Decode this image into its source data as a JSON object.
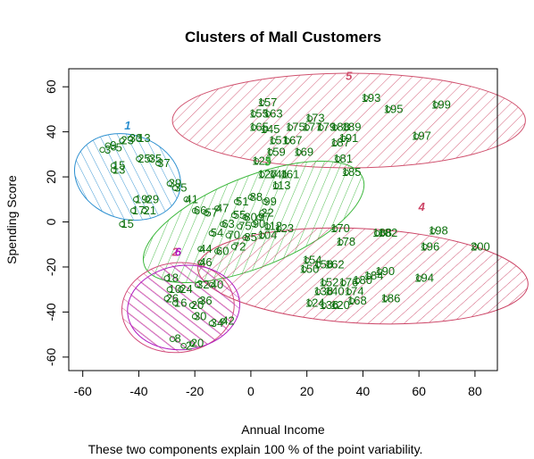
{
  "chart_data": {
    "type": "scatter",
    "title": "Clusters of Mall Customers",
    "xlabel": "Annual Income",
    "ylabel": "Spending Score",
    "sub": "These two components explain 100 % of the point variability.",
    "xlim": [
      -65,
      88
    ],
    "ylim": [
      -66,
      68
    ],
    "xticks": [
      "-60",
      "-40",
      "-20",
      "0",
      "20",
      "40",
      "60",
      "80"
    ],
    "yticks": [
      "-60",
      "-40",
      "-20",
      "0",
      "20",
      "40",
      "60"
    ],
    "grid": false,
    "legend": "none",
    "colors": {
      "points": "#1a7a1a",
      "labels": "#0a6e0a",
      "cluster_1": "#2b8fd0",
      "cluster_2": "#d24b7a",
      "cluster_3": "#3db83d",
      "cluster_4": "#cc4466",
      "cluster_5": "#d0516e",
      "cluster_6": "#b01cc0"
    },
    "clusters": [
      {
        "label": "1",
        "cx": -44,
        "cy": 20,
        "rx": 15,
        "ry": 24,
        "angle": -72,
        "color": "#2b8fd0",
        "label_x": -44,
        "label_y": 41
      },
      {
        "label": "5",
        "cx": 35,
        "cy": 45,
        "rx": 63,
        "ry": 21,
        "angle": 0,
        "color": "#d0516e",
        "label_x": 35,
        "label_y": 63
      },
      {
        "label": "3",
        "cx": 1,
        "cy": 0,
        "rx": 42,
        "ry": 20,
        "angle": -22,
        "color": "#3db83d",
        "label_x": 6,
        "label_y": 25
      },
      {
        "label": "4",
        "cx": 40,
        "cy": -24,
        "rx": 59,
        "ry": 21,
        "angle": 3,
        "color": "#cc4466",
        "label_x": 61,
        "label_y": 5
      },
      {
        "label": "2",
        "cx": -26,
        "cy": -38,
        "rx": 16,
        "ry": 25,
        "angle": 83,
        "color": "#d24b7a",
        "label_x": -27,
        "label_y": -15
      },
      {
        "label": "6",
        "cx": -24,
        "cy": -38,
        "rx": 15,
        "ry": 25,
        "angle": 83,
        "color": "#b01cc0",
        "label_x": -26,
        "label_y": -15
      }
    ],
    "points": [
      {
        "x": -53,
        "y": 32,
        "label": "3"
      },
      {
        "x": -51,
        "y": 34,
        "label": "9"
      },
      {
        "x": -49,
        "y": 33,
        "label": "5"
      },
      {
        "x": -46,
        "y": 36,
        "label": "23"
      },
      {
        "x": -43,
        "y": 37,
        "label": "33"
      },
      {
        "x": -40,
        "y": 37,
        "label": "13"
      },
      {
        "x": -49,
        "y": 25,
        "label": "15"
      },
      {
        "x": -49,
        "y": 23,
        "label": "13"
      },
      {
        "x": -40,
        "y": 28,
        "label": "25"
      },
      {
        "x": -36,
        "y": 28,
        "label": "35"
      },
      {
        "x": -33,
        "y": 26,
        "label": "37"
      },
      {
        "x": -29,
        "y": 17,
        "label": "39"
      },
      {
        "x": -27,
        "y": 15,
        "label": "35"
      },
      {
        "x": -41,
        "y": 10,
        "label": "19"
      },
      {
        "x": -37,
        "y": 10,
        "label": "29"
      },
      {
        "x": -42,
        "y": 5,
        "label": "17"
      },
      {
        "x": -38,
        "y": 5,
        "label": "21"
      },
      {
        "x": -46,
        "y": -1,
        "label": "15"
      },
      {
        "x": -23,
        "y": 10,
        "label": "41"
      },
      {
        "x": -20,
        "y": 5,
        "label": "66"
      },
      {
        "x": -16,
        "y": 4,
        "label": "57"
      },
      {
        "x": -12,
        "y": 6,
        "label": "47"
      },
      {
        "x": -5,
        "y": 9,
        "label": "51"
      },
      {
        "x": 0,
        "y": 11,
        "label": "88"
      },
      {
        "x": 5,
        "y": 9,
        "label": "99"
      },
      {
        "x": 4,
        "y": 4,
        "label": "22"
      },
      {
        "x": -6,
        "y": 3,
        "label": "55"
      },
      {
        "x": -2,
        "y": 2,
        "label": "80"
      },
      {
        "x": 3,
        "y": 2,
        "label": "97"
      },
      {
        "x": -10,
        "y": -1,
        "label": "63"
      },
      {
        "x": -4,
        "y": -2,
        "label": "75"
      },
      {
        "x": 1,
        "y": -1,
        "label": "90"
      },
      {
        "x": 6,
        "y": -2,
        "label": "112"
      },
      {
        "x": 10,
        "y": -3,
        "label": "123"
      },
      {
        "x": -14,
        "y": -5,
        "label": "54"
      },
      {
        "x": -8,
        "y": -6,
        "label": "70"
      },
      {
        "x": -2,
        "y": -7,
        "label": "85"
      },
      {
        "x": 4,
        "y": -6,
        "label": "104"
      },
      {
        "x": -18,
        "y": -12,
        "label": "44"
      },
      {
        "x": -12,
        "y": -13,
        "label": "60"
      },
      {
        "x": -6,
        "y": -11,
        "label": "72"
      },
      {
        "x": -18,
        "y": -18,
        "label": "46"
      },
      {
        "x": 2,
        "y": 27,
        "label": "125"
      },
      {
        "x": 4,
        "y": 21,
        "label": "127"
      },
      {
        "x": 8,
        "y": 21,
        "label": "141"
      },
      {
        "x": 12,
        "y": 21,
        "label": "161"
      },
      {
        "x": 9,
        "y": 16,
        "label": "113"
      },
      {
        "x": 4,
        "y": 53,
        "label": "157"
      },
      {
        "x": 6,
        "y": 48,
        "label": "163"
      },
      {
        "x": 1,
        "y": 48,
        "label": "155"
      },
      {
        "x": 1,
        "y": 42,
        "label": "165"
      },
      {
        "x": 5,
        "y": 41,
        "label": "145"
      },
      {
        "x": 8,
        "y": 36,
        "label": "151"
      },
      {
        "x": 13,
        "y": 36,
        "label": "167"
      },
      {
        "x": 7,
        "y": 31,
        "label": "159"
      },
      {
        "x": 17,
        "y": 31,
        "label": "169"
      },
      {
        "x": 14,
        "y": 42,
        "label": "175"
      },
      {
        "x": 20,
        "y": 42,
        "label": "177"
      },
      {
        "x": 25,
        "y": 42,
        "label": "179"
      },
      {
        "x": 30,
        "y": 42,
        "label": "183"
      },
      {
        "x": 21,
        "y": 46,
        "label": "173"
      },
      {
        "x": 34,
        "y": 42,
        "label": "189"
      },
      {
        "x": 33,
        "y": 37,
        "label": "191"
      },
      {
        "x": 30,
        "y": 35,
        "label": "187"
      },
      {
        "x": 31,
        "y": 28,
        "label": "181"
      },
      {
        "x": 34,
        "y": 22,
        "label": "185"
      },
      {
        "x": 41,
        "y": 55,
        "label": "193"
      },
      {
        "x": 49,
        "y": 50,
        "label": "195"
      },
      {
        "x": 59,
        "y": 38,
        "label": "197"
      },
      {
        "x": 66,
        "y": 52,
        "label": "199"
      },
      {
        "x": 30,
        "y": -3,
        "label": "170"
      },
      {
        "x": 32,
        "y": -9,
        "label": "178"
      },
      {
        "x": 47,
        "y": -5,
        "label": "182"
      },
      {
        "x": 45,
        "y": -5,
        "label": "188"
      },
      {
        "x": 65,
        "y": -4,
        "label": "198"
      },
      {
        "x": 62,
        "y": -11,
        "label": "196"
      },
      {
        "x": 80,
        "y": -11,
        "label": "200"
      },
      {
        "x": 20,
        "y": -17,
        "label": "154"
      },
      {
        "x": 24,
        "y": -19,
        "label": "158"
      },
      {
        "x": 28,
        "y": -19,
        "label": "162"
      },
      {
        "x": 19,
        "y": -21,
        "label": "150"
      },
      {
        "x": 26,
        "y": -27,
        "label": "152"
      },
      {
        "x": 33,
        "y": -27,
        "label": "176"
      },
      {
        "x": 38,
        "y": -26,
        "label": "180"
      },
      {
        "x": 42,
        "y": -24,
        "label": "184"
      },
      {
        "x": 46,
        "y": -22,
        "label": "190"
      },
      {
        "x": 60,
        "y": -25,
        "label": "194"
      },
      {
        "x": 24,
        "y": -31,
        "label": "138"
      },
      {
        "x": 28,
        "y": -31,
        "label": "140"
      },
      {
        "x": 35,
        "y": -31,
        "label": "174"
      },
      {
        "x": 48,
        "y": -34,
        "label": "186"
      },
      {
        "x": 36,
        "y": -35,
        "label": "168"
      },
      {
        "x": 21,
        "y": -36,
        "label": "124"
      },
      {
        "x": 26,
        "y": -37,
        "label": "136"
      },
      {
        "x": 30,
        "y": -37,
        "label": "120"
      },
      {
        "x": -30,
        "y": -25,
        "label": "18"
      },
      {
        "x": -29,
        "y": -30,
        "label": "10"
      },
      {
        "x": -25,
        "y": -30,
        "label": "24"
      },
      {
        "x": -19,
        "y": -28,
        "label": "32"
      },
      {
        "x": -14,
        "y": -28,
        "label": "40"
      },
      {
        "x": -30,
        "y": -34,
        "label": "26"
      },
      {
        "x": -27,
        "y": -36,
        "label": "16"
      },
      {
        "x": -21,
        "y": -37,
        "label": "20"
      },
      {
        "x": -18,
        "y": -35,
        "label": "36"
      },
      {
        "x": -20,
        "y": -42,
        "label": "30"
      },
      {
        "x": -14,
        "y": -45,
        "label": "34"
      },
      {
        "x": -10,
        "y": -44,
        "label": "42"
      },
      {
        "x": -28,
        "y": -52,
        "label": "8"
      },
      {
        "x": -24,
        "y": -55,
        "label": "2"
      },
      {
        "x": -21,
        "y": -54,
        "label": "20"
      }
    ]
  }
}
